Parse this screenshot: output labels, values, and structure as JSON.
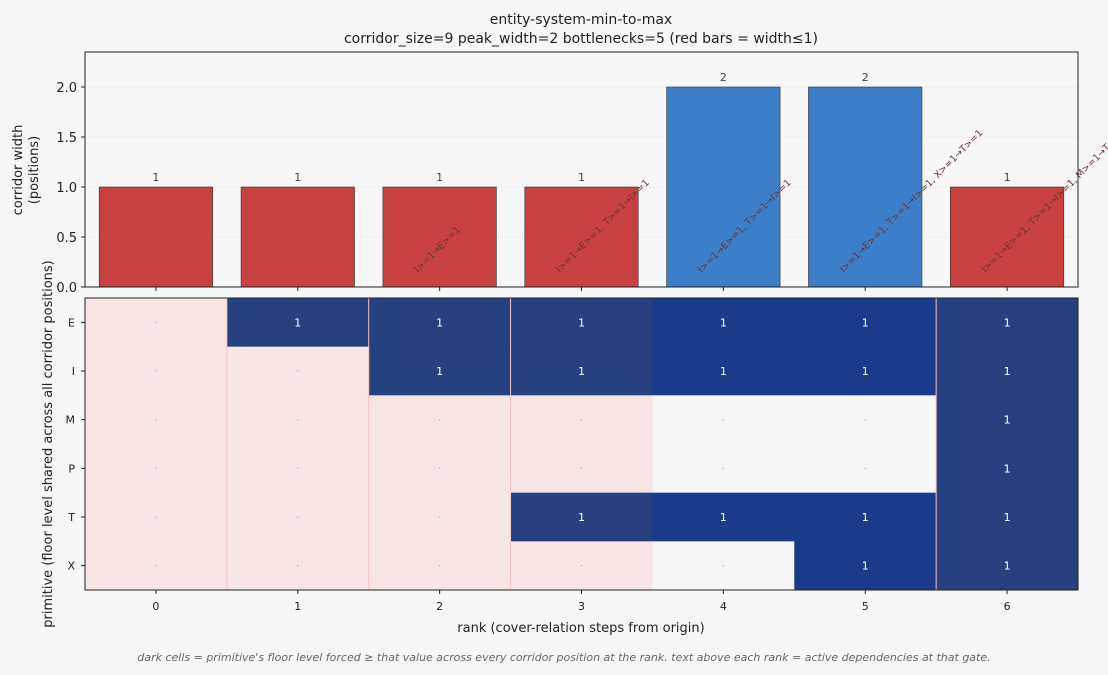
{
  "chart_data": [
    {
      "type": "bar",
      "title": "entity-system-min-to-max",
      "subtitle": "corridor_size=9  peak_width=2  bottlenecks=5  (red bars = width≤1)",
      "ylabel_line1": "corridor width",
      "ylabel_line2": "(positions)",
      "categories": [
        "0",
        "1",
        "2",
        "3",
        "4",
        "5",
        "6"
      ],
      "values": [
        1,
        1,
        1,
        1,
        2,
        2,
        1
      ],
      "value_labels": [
        "1",
        "1",
        "1",
        "1",
        "2",
        "2",
        "1"
      ],
      "dependency_labels": [
        "",
        "",
        "I>=1→E>=1",
        "I>=1→E>=1, T>=1→I>=1",
        "I>=1→E>=1, T>=1→I>=1",
        "I>=1→E>=1, T>=1→I>=1, X>=1→T>=1",
        "I>=1→E>=1, T>=1→I>=1, M>=1→T>=1 +3"
      ],
      "ylim": [
        0,
        2.35
      ],
      "yticks": [
        "0.0",
        "0.5",
        "1.0",
        "1.5",
        "2.0"
      ],
      "colors": {
        "bottleneck": "#c94040",
        "normal": "#3d7ec8"
      }
    },
    {
      "type": "heatmap",
      "xlabel": "rank (cover-relation steps from origin)",
      "ylabel": "primitive (floor level shared across all corridor positions)",
      "columns": [
        "0",
        "1",
        "2",
        "3",
        "4",
        "5",
        "6"
      ],
      "rows": [
        "E",
        "I",
        "M",
        "P",
        "T",
        "X"
      ],
      "values": [
        [
          0,
          1,
          1,
          1,
          1,
          1,
          1
        ],
        [
          0,
          0,
          1,
          1,
          1,
          1,
          1
        ],
        [
          0,
          0,
          0,
          0,
          0,
          0,
          1
        ],
        [
          0,
          0,
          0,
          0,
          0,
          0,
          1
        ],
        [
          0,
          0,
          0,
          1,
          1,
          1,
          1
        ],
        [
          0,
          0,
          0,
          0,
          0,
          1,
          1
        ]
      ],
      "colors": {
        "filled_bottleneck": "#27407f",
        "filled_normal": "#1a3a8a",
        "empty_bottleneck": "#f8e6e6",
        "empty_normal": "#f7f7f7"
      }
    }
  ],
  "footnote": "dark cells = primitive's floor level forced ≥ that value across every corridor position at the rank.  text above each rank = active dependencies at that gate."
}
